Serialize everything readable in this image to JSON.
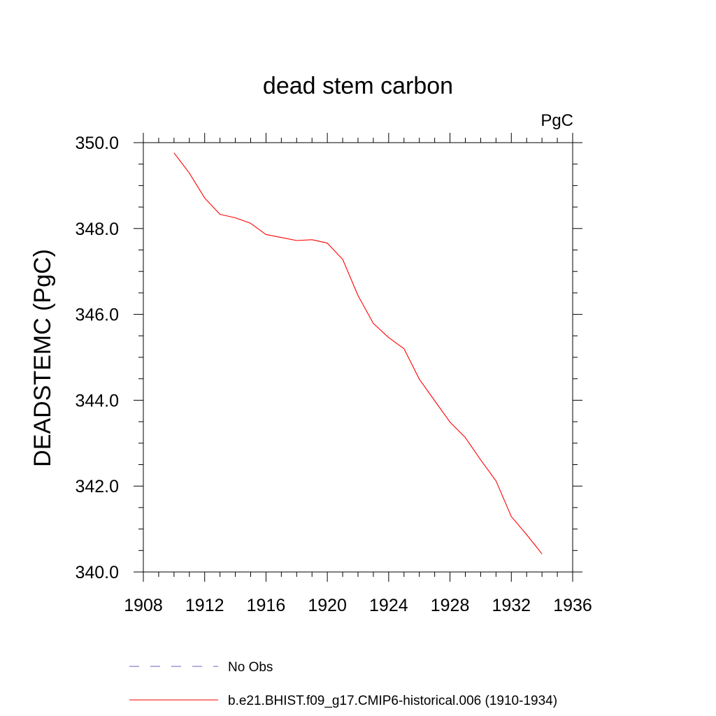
{
  "chart_data": {
    "type": "line",
    "title": "dead stem carbon",
    "units_label": "PgC",
    "xlabel": "",
    "ylabel": "DEADSTEMC  (PgC)",
    "xlim": [
      1908,
      1936
    ],
    "ylim": [
      340.0,
      350.0
    ],
    "x_ticks": [
      1908,
      1912,
      1916,
      1920,
      1924,
      1928,
      1932,
      1936
    ],
    "x_tick_labels": [
      "1908",
      "1912",
      "1916",
      "1920",
      "1924",
      "1928",
      "1932",
      "1936"
    ],
    "y_ticks": [
      340,
      342,
      344,
      346,
      348,
      350
    ],
    "y_tick_labels": [
      "340.0",
      "342.0",
      "344.0",
      "346.0",
      "348.0",
      "350.0"
    ],
    "grid": false,
    "series": [
      {
        "name": "b.e21.BHIST.f09_g17.CMIP6-historical.006 (1910-1934)",
        "color": "#ff0000",
        "dash": "solid",
        "x": [
          1910,
          1911,
          1912,
          1913,
          1914,
          1915,
          1916,
          1917,
          1918,
          1919,
          1920,
          1921,
          1922,
          1923,
          1924,
          1925,
          1926,
          1927,
          1928,
          1929,
          1930,
          1931,
          1932,
          1933,
          1934
        ],
        "y": [
          349.76,
          349.29,
          348.71,
          348.33,
          348.25,
          348.12,
          347.86,
          347.79,
          347.72,
          347.74,
          347.66,
          347.28,
          346.44,
          345.79,
          345.46,
          345.2,
          344.49,
          343.99,
          343.49,
          343.13,
          342.61,
          342.12,
          341.29,
          340.87,
          340.42
        ]
      }
    ],
    "legend": [
      {
        "label": "No Obs",
        "color": "#6b5fc4",
        "dash": "dashed"
      },
      {
        "label": "b.e21.BHIST.f09_g17.CMIP6-historical.006 (1910-1934)",
        "color": "#ff0000",
        "dash": "solid"
      }
    ],
    "legend_position": "bottom"
  }
}
